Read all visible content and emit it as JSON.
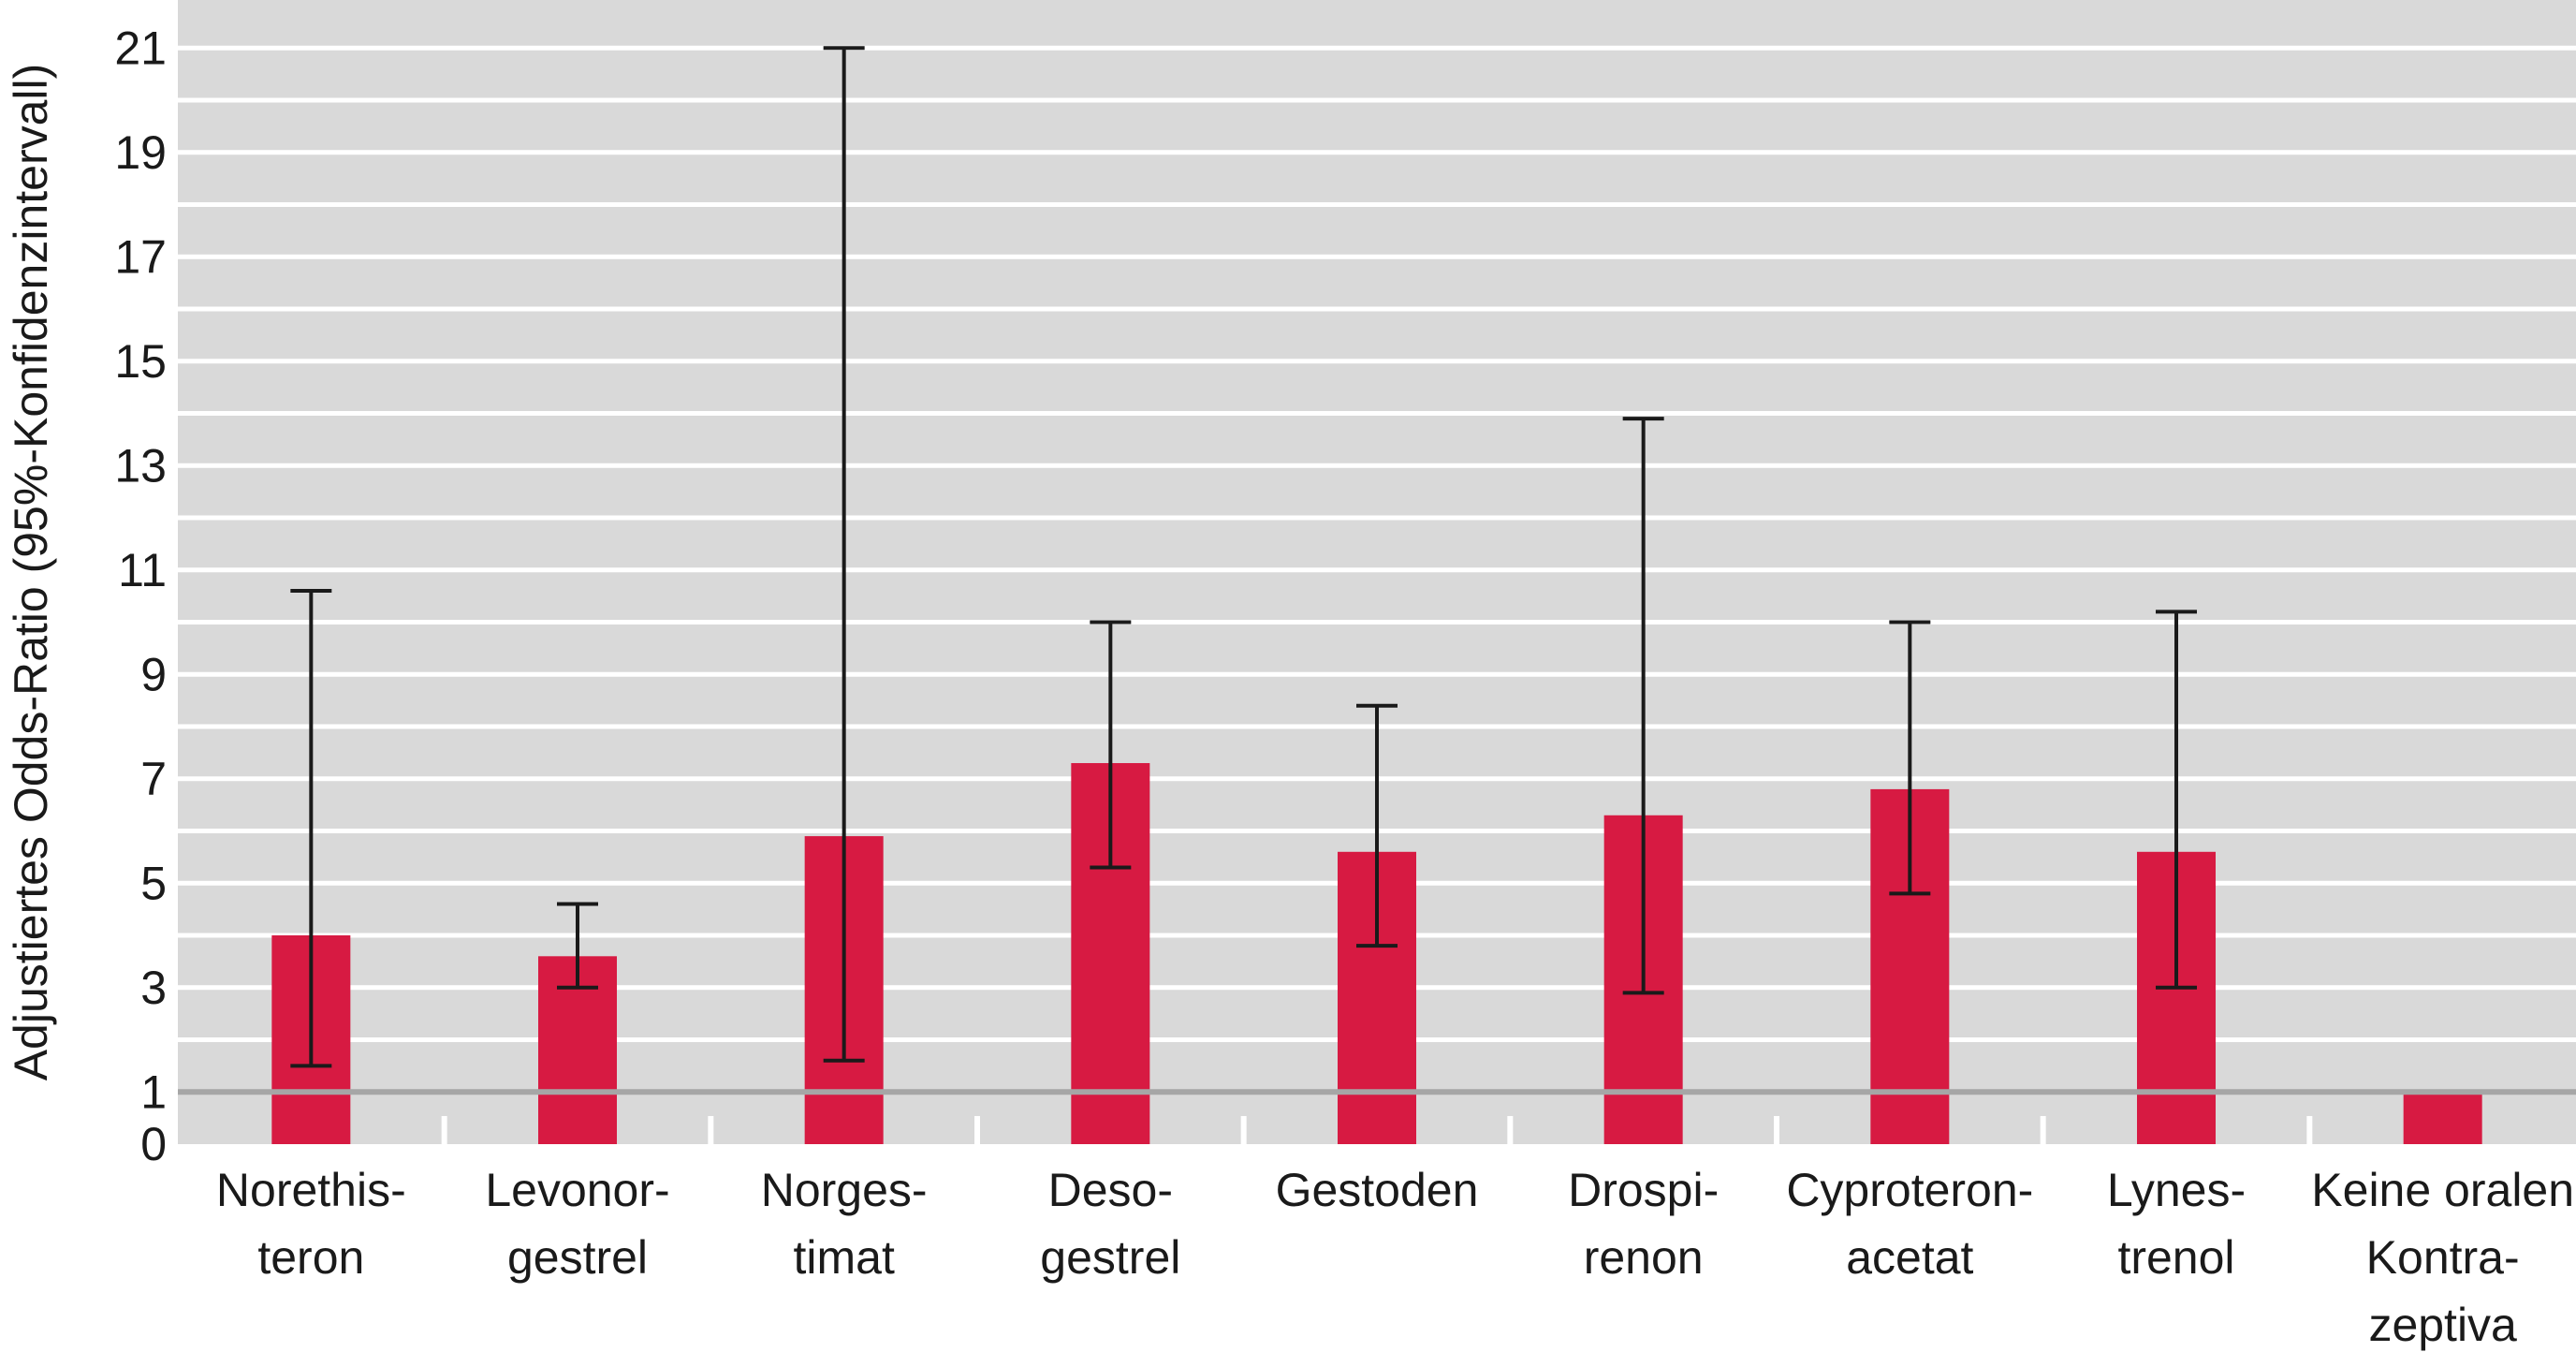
{
  "chart_data": {
    "type": "bar",
    "ylabel": "Adjustiertes Odds-Ratio (95%-Konfidenzintervall)",
    "xlabel": "",
    "title": "",
    "ylim": [
      0,
      22
    ],
    "y_ticks": [
      0,
      1,
      3,
      5,
      7,
      9,
      11,
      13,
      15,
      17,
      19,
      21
    ],
    "grid": "horizontal",
    "reference_line": 1,
    "colors": {
      "bar": "#d71a42",
      "plot_background": "#d9d9d9",
      "gridline": "#ffffff",
      "reference_line": "#a6a6a6",
      "error_bar": "#1a1a1a"
    },
    "categories": [
      [
        "Norethis-",
        "teron"
      ],
      [
        "Levonor-",
        "gestrel"
      ],
      [
        "Norges-",
        "timat"
      ],
      [
        "Deso-",
        "gestrel"
      ],
      [
        "Gestoden"
      ],
      [
        "Drospi-",
        "renon"
      ],
      [
        "Cyproteron-",
        "acetat"
      ],
      [
        "Lynes-",
        "trenol"
      ],
      [
        "Keine oralen",
        "Kontra-",
        "zeptiva"
      ]
    ],
    "values": [
      4.0,
      3.6,
      5.9,
      7.3,
      5.6,
      6.3,
      6.8,
      5.6,
      1.0
    ],
    "ci_lower": [
      1.5,
      3.0,
      1.6,
      5.3,
      3.8,
      2.9,
      4.8,
      3.0,
      null
    ],
    "ci_upper": [
      10.6,
      4.6,
      21.0,
      10.0,
      8.4,
      13.9,
      10.0,
      10.2,
      null
    ]
  }
}
